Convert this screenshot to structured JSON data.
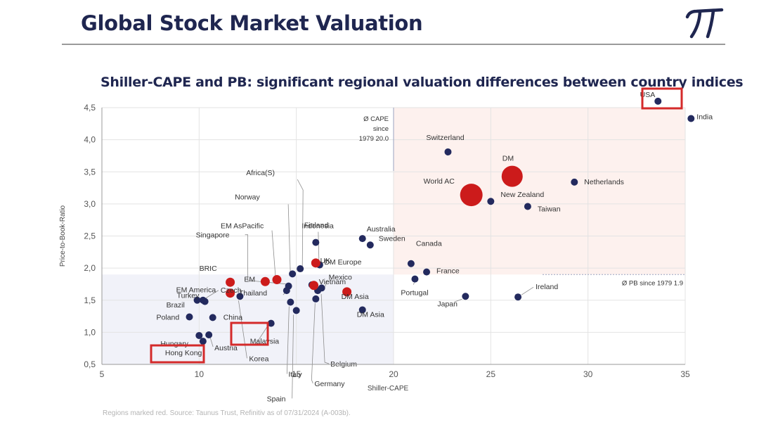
{
  "header": {
    "title": "Global Stock Market Valuation",
    "logo_icon": "pi-logo-icon"
  },
  "footnote": "Regions marked red. Source: Taunus Trust, Refinitiv as of 07/31/2024 (A-003b).",
  "colors": {
    "country": "#232a5e",
    "region": "#cc1b1b",
    "highlight_box": "#d42a2a",
    "title": "#1f2650"
  },
  "chart_data": {
    "type": "scatter",
    "title": "Shiller-CAPE and PB: significant regional valuation differences between country indices",
    "xlabel": "Shiller-CAPE",
    "ylabel": "Price-to-Book-Ratio",
    "xlim": [
      5,
      35
    ],
    "ylim": [
      0.5,
      4.5
    ],
    "xticks": [
      "5",
      "10",
      "15",
      "20",
      "25",
      "30",
      "35"
    ],
    "yticks": [
      "0,5",
      "1,0",
      "1,5",
      "2,0",
      "2,5",
      "3,0",
      "3,5",
      "4,0",
      "4,5"
    ],
    "grid": true,
    "reference_lines": [
      {
        "axis": "x",
        "value": 20.0,
        "label": [
          "Ø CAPE",
          "since",
          "1979 20.0"
        ]
      },
      {
        "axis": "y",
        "value": 1.9,
        "label": [
          "Ø PB since 1979 1.9"
        ]
      }
    ],
    "highlighted": [
      "USA",
      "Korea",
      "Hong Kong"
    ],
    "series": [
      {
        "name": "Countries",
        "points": [
          {
            "label": "USA",
            "x": 33.6,
            "y": 4.6
          },
          {
            "label": "India",
            "x": 35.3,
            "y": 4.33
          },
          {
            "label": "Switzerland",
            "x": 22.8,
            "y": 3.81
          },
          {
            "label": "Netherlands",
            "x": 29.3,
            "y": 3.34
          },
          {
            "label": "New Zealand",
            "x": 25.0,
            "y": 3.04
          },
          {
            "label": "Taiwan",
            "x": 26.9,
            "y": 2.96
          },
          {
            "label": "Australia",
            "x": 18.4,
            "y": 2.46
          },
          {
            "label": "Sweden",
            "x": 18.8,
            "y": 2.36
          },
          {
            "label": "Canada",
            "x": 20.9,
            "y": 2.07
          },
          {
            "label": "France",
            "x": 21.7,
            "y": 1.94
          },
          {
            "label": "Portugal",
            "x": 21.1,
            "y": 1.83
          },
          {
            "label": "Japan",
            "x": 23.7,
            "y": 1.56
          },
          {
            "label": "Ireland",
            "x": 26.4,
            "y": 1.55
          },
          {
            "label": "Indonesia",
            "x": 16.0,
            "y": 2.4
          },
          {
            "label": "Finland",
            "x": 16.2,
            "y": 2.05
          },
          {
            "label": "Africa(S)",
            "x": 15.2,
            "y": 1.99
          },
          {
            "label": "Norway",
            "x": 14.8,
            "y": 1.91
          },
          {
            "label": "Mexico",
            "x": 16.3,
            "y": 1.69
          },
          {
            "label": "Vietnam",
            "x": 15.8,
            "y": 1.74
          },
          {
            "label": "Singapore",
            "x": 14.6,
            "y": 1.72
          },
          {
            "label": "Thailand",
            "x": 14.5,
            "y": 1.65
          },
          {
            "label": "Belgium",
            "x": 16.1,
            "y": 1.65
          },
          {
            "label": "DM Asia",
            "x": 18.4,
            "y": 1.35
          },
          {
            "label": "Germany",
            "x": 16.0,
            "y": 1.52
          },
          {
            "label": "Spain",
            "x": 15.0,
            "y": 1.34
          },
          {
            "label": "Italy",
            "x": 14.7,
            "y": 1.47
          },
          {
            "label": "Malaysia",
            "x": 13.7,
            "y": 1.14
          },
          {
            "label": "Czech",
            "x": 10.2,
            "y": 1.5
          },
          {
            "label": "Turkey",
            "x": 10.3,
            "y": 1.48
          },
          {
            "label": "Brazil",
            "x": 9.9,
            "y": 1.5
          },
          {
            "label": "China",
            "x": 10.7,
            "y": 1.23
          },
          {
            "label": "Poland",
            "x": 9.5,
            "y": 1.24
          },
          {
            "label": "Hungary",
            "x": 10.0,
            "y": 0.95
          },
          {
            "label": "Austria",
            "x": 10.5,
            "y": 0.96
          },
          {
            "label": "Hong Kong",
            "x": 10.2,
            "y": 0.86
          },
          {
            "label": "Korea",
            "x": 12.1,
            "y": 1.56
          }
        ]
      },
      {
        "name": "Regions",
        "points": [
          {
            "label": "DM",
            "x": 26.1,
            "y": 3.43
          },
          {
            "label": "World AC",
            "x": 24.0,
            "y": 3.14
          },
          {
            "label": "DM Europe",
            "x": 16.0,
            "y": 2.08
          },
          {
            "label": "UK",
            "x": 15.9,
            "y": 1.73
          },
          {
            "label": "EM AsPacific",
            "x": 14.0,
            "y": 1.82
          },
          {
            "label": "EM",
            "x": 13.4,
            "y": 1.79
          },
          {
            "label": "BRIC",
            "x": 11.6,
            "y": 1.78
          },
          {
            "label": "EM America",
            "x": 11.6,
            "y": 1.61
          },
          {
            "label": "DM Asia",
            "x": 17.6,
            "y": 1.63
          }
        ]
      }
    ]
  }
}
